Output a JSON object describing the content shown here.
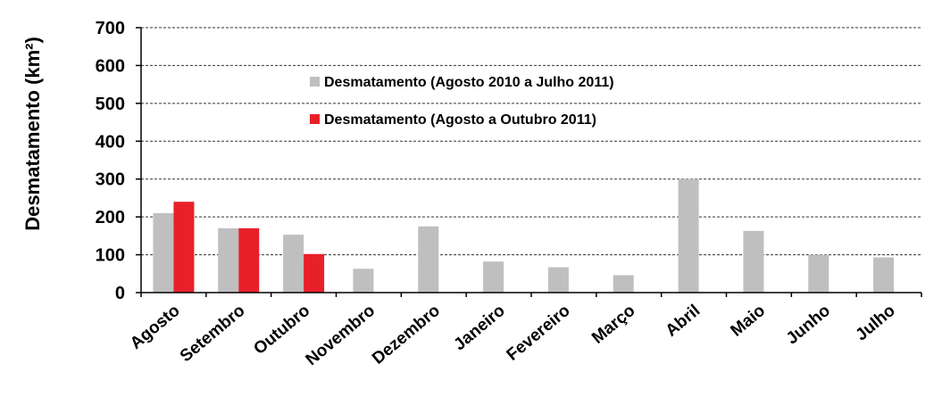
{
  "chart_data": {
    "type": "bar",
    "title": "",
    "xlabel": "",
    "ylabel": "Desmatamento (km²)",
    "ylim": [
      0,
      700
    ],
    "yticks": [
      0,
      100,
      200,
      300,
      400,
      500,
      600,
      700
    ],
    "grid": true,
    "legend_placement": "upper-center",
    "categories": [
      "Agosto",
      "Setembro",
      "Outubro",
      "Novembro",
      "Dezembro",
      "Janeiro",
      "Fevereiro",
      "Março",
      "Abril",
      "Maio",
      "Junho",
      "Julho"
    ],
    "series": [
      {
        "name": "Desmatamento  (Agosto 2010 a Julho 2011)",
        "color": "#bfbfbf",
        "values": [
          210,
          170,
          153,
          63,
          175,
          82,
          67,
          46,
          300,
          163,
          100,
          93
        ]
      },
      {
        "name": "Desmatamento  (Agosto a Outubro 2011)",
        "color": "#e8202a",
        "values": [
          240,
          170,
          102,
          null,
          null,
          null,
          null,
          null,
          null,
          null,
          null,
          null
        ]
      }
    ]
  }
}
